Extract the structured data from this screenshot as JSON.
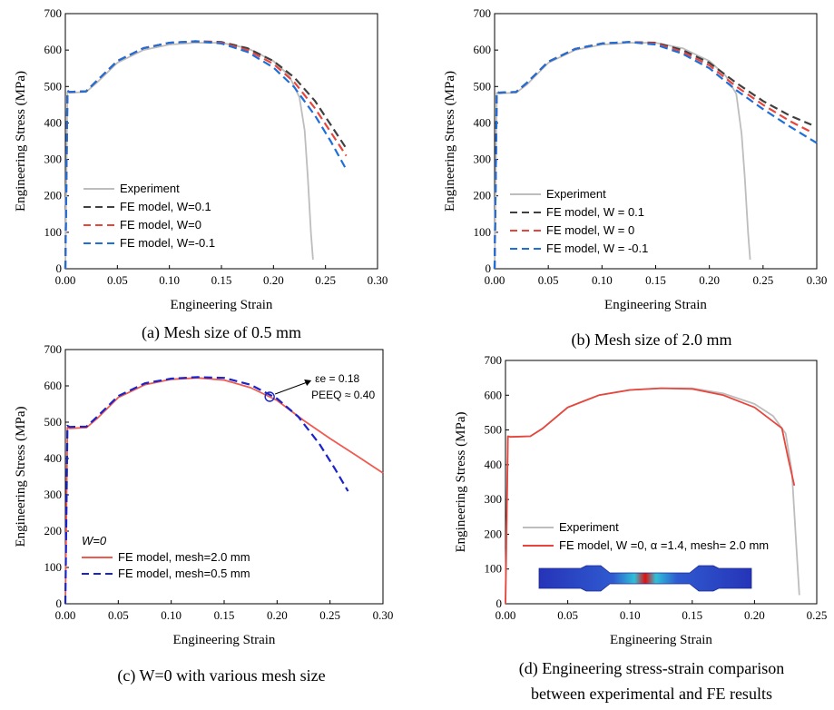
{
  "chart_data": [
    {
      "type": "line",
      "caption": "(a) Mesh size of 0.5 mm",
      "xlabel": "Engineering Strain",
      "ylabel": "Engineering Stress (MPa)",
      "xlim": [
        0,
        0.3
      ],
      "ylim": [
        0,
        700
      ],
      "xticks": [
        "0.00",
        "0.05",
        "0.10",
        "0.15",
        "0.20",
        "0.25",
        "0.30"
      ],
      "yticks": [
        "0",
        "100",
        "200",
        "300",
        "400",
        "500",
        "600",
        "700"
      ],
      "legend": [
        {
          "label": "Experiment",
          "color": "#bdbdbd",
          "dash": "solid"
        },
        {
          "label": "FE model, W=0.1",
          "color": "#404040",
          "dash": "dashed"
        },
        {
          "label": "FE model, W=0",
          "color": "#e8453c",
          "dash": "dashed"
        },
        {
          "label": "FE model, W=-0.1",
          "color": "#1f6fd8",
          "dash": "dashed"
        }
      ],
      "series": [
        {
          "name": "Experiment",
          "x": [
            0,
            0.002,
            0.004,
            0.02,
            0.03,
            0.05,
            0.075,
            0.1,
            0.125,
            0.15,
            0.175,
            0.2,
            0.215,
            0.225,
            0.23,
            0.233,
            0.236,
            0.238
          ],
          "y": [
            0,
            485,
            483,
            485,
            510,
            565,
            600,
            615,
            620,
            620,
            605,
            570,
            530,
            470,
            380,
            250,
            100,
            25
          ]
        },
        {
          "name": "FE model, W=0.1",
          "x": [
            0,
            0.002,
            0.004,
            0.02,
            0.03,
            0.05,
            0.075,
            0.1,
            0.125,
            0.15,
            0.175,
            0.2,
            0.22,
            0.24,
            0.255,
            0.27
          ],
          "y": [
            0,
            488,
            485,
            487,
            515,
            570,
            605,
            620,
            624,
            622,
            605,
            570,
            525,
            460,
            395,
            330
          ]
        },
        {
          "name": "FE model, W=0",
          "x": [
            0,
            0.002,
            0.004,
            0.02,
            0.03,
            0.05,
            0.075,
            0.1,
            0.125,
            0.15,
            0.175,
            0.2,
            0.22,
            0.24,
            0.255,
            0.27
          ],
          "y": [
            0,
            488,
            485,
            487,
            515,
            570,
            605,
            620,
            624,
            620,
            600,
            562,
            512,
            440,
            375,
            310
          ]
        },
        {
          "name": "FE model, W=-0.1",
          "x": [
            0,
            0.002,
            0.004,
            0.02,
            0.03,
            0.05,
            0.075,
            0.1,
            0.125,
            0.15,
            0.175,
            0.2,
            0.22,
            0.24,
            0.255,
            0.27
          ],
          "y": [
            0,
            488,
            485,
            487,
            515,
            570,
            605,
            620,
            624,
            618,
            595,
            552,
            498,
            420,
            350,
            272
          ]
        }
      ]
    },
    {
      "type": "line",
      "caption": "(b) Mesh size of 2.0 mm",
      "xlabel": "Engineering Strain",
      "ylabel": "Engineering Stress (MPa)",
      "xlim": [
        0,
        0.3
      ],
      "ylim": [
        0,
        700
      ],
      "xticks": [
        "0.00",
        "0.05",
        "0.10",
        "0.15",
        "0.20",
        "0.25",
        "0.30"
      ],
      "yticks": [
        "0",
        "100",
        "200",
        "300",
        "400",
        "500",
        "600",
        "700"
      ],
      "legend": [
        {
          "label": "Experiment",
          "color": "#bdbdbd",
          "dash": "solid"
        },
        {
          "label": "FE model, W = 0.1",
          "color": "#404040",
          "dash": "dashed"
        },
        {
          "label": "FE model, W = 0",
          "color": "#e8453c",
          "dash": "dashed"
        },
        {
          "label": "FE model, W = -0.1",
          "color": "#1f6fd8",
          "dash": "dashed"
        }
      ],
      "series": [
        {
          "name": "Experiment",
          "x": [
            0,
            0.002,
            0.004,
            0.02,
            0.03,
            0.05,
            0.075,
            0.1,
            0.125,
            0.15,
            0.175,
            0.2,
            0.215,
            0.225,
            0.23,
            0.233,
            0.236,
            0.238
          ],
          "y": [
            0,
            483,
            481,
            483,
            505,
            565,
            600,
            615,
            620,
            620,
            605,
            570,
            530,
            480,
            370,
            250,
            100,
            25
          ]
        },
        {
          "name": "FE model, W = 0.1",
          "x": [
            0,
            0.002,
            0.004,
            0.02,
            0.03,
            0.05,
            0.075,
            0.1,
            0.125,
            0.15,
            0.175,
            0.2,
            0.225,
            0.25,
            0.275,
            0.295
          ],
          "y": [
            0,
            485,
            483,
            485,
            510,
            568,
            603,
            618,
            622,
            620,
            600,
            565,
            510,
            460,
            420,
            395
          ]
        },
        {
          "name": "FE model, W = 0",
          "x": [
            0,
            0.002,
            0.004,
            0.02,
            0.03,
            0.05,
            0.075,
            0.1,
            0.125,
            0.15,
            0.175,
            0.2,
            0.225,
            0.25,
            0.275,
            0.295
          ],
          "y": [
            0,
            485,
            483,
            485,
            510,
            568,
            603,
            618,
            622,
            618,
            595,
            558,
            500,
            450,
            405,
            375
          ]
        },
        {
          "name": "FE model, W = -0.1",
          "x": [
            0,
            0.002,
            0.004,
            0.02,
            0.03,
            0.05,
            0.075,
            0.1,
            0.125,
            0.15,
            0.175,
            0.2,
            0.225,
            0.25,
            0.275,
            0.3
          ],
          "y": [
            0,
            485,
            483,
            485,
            510,
            568,
            603,
            618,
            622,
            615,
            590,
            550,
            490,
            438,
            390,
            345
          ]
        }
      ]
    },
    {
      "type": "line",
      "caption": "(c) W=0 with various mesh size",
      "xlabel": "Engineering Strain",
      "ylabel": "Engineering Stress (MPa)",
      "xlim": [
        0,
        0.3
      ],
      "ylim": [
        0,
        700
      ],
      "xticks": [
        "0.00",
        "0.05",
        "0.10",
        "0.15",
        "0.20",
        "0.25",
        "0.30"
      ],
      "yticks": [
        "0",
        "100",
        "200",
        "300",
        "400",
        "500",
        "600",
        "700"
      ],
      "legend_title": "W=0",
      "legend": [
        {
          "label": "FE model, mesh=2.0 mm",
          "color": "#f05a50",
          "dash": "solid"
        },
        {
          "label": "FE model, mesh=0.5 mm",
          "color": "#1a24c8",
          "dash": "dashed"
        }
      ],
      "annotation": {
        "line1": "εe = 0.18",
        "line2": "PEEQ ≈ 0.40",
        "x": 0.193,
        "y": 570
      },
      "series": [
        {
          "name": "FE model, mesh=2.0 mm",
          "x": [
            0,
            0.002,
            0.004,
            0.02,
            0.03,
            0.05,
            0.075,
            0.1,
            0.125,
            0.15,
            0.175,
            0.2,
            0.225,
            0.25,
            0.275,
            0.3
          ],
          "y": [
            0,
            485,
            483,
            485,
            510,
            568,
            603,
            618,
            622,
            616,
            595,
            560,
            505,
            455,
            408,
            360
          ]
        },
        {
          "name": "FE model, mesh=0.5 mm",
          "x": [
            0,
            0.002,
            0.004,
            0.02,
            0.03,
            0.05,
            0.075,
            0.1,
            0.125,
            0.15,
            0.175,
            0.2,
            0.22,
            0.24,
            0.255,
            0.267
          ],
          "y": [
            0,
            490,
            487,
            488,
            515,
            572,
            607,
            620,
            624,
            622,
            603,
            565,
            515,
            440,
            370,
            310
          ]
        }
      ]
    },
    {
      "type": "line",
      "caption_line1": "(d) Engineering stress-strain comparison",
      "caption_line2": "between experimental and FE results",
      "xlabel": "Engineering Strain",
      "ylabel": "Engineering Stress (MPa)",
      "xlim": [
        0,
        0.25
      ],
      "ylim": [
        0,
        700
      ],
      "xticks": [
        "0.00",
        "0.05",
        "0.10",
        "0.15",
        "0.20",
        "0.25"
      ],
      "yticks": [
        "0",
        "100",
        "200",
        "300",
        "400",
        "500",
        "600",
        "700"
      ],
      "legend": [
        {
          "label": "Experiment",
          "color": "#bdbdbd",
          "dash": "solid"
        },
        {
          "label": "FE model, W =0, α =1.4, mesh= 2.0 mm",
          "color": "#e8453c",
          "dash": "solid"
        }
      ],
      "series": [
        {
          "name": "Experiment",
          "x": [
            0,
            0.002,
            0.004,
            0.02,
            0.03,
            0.05,
            0.075,
            0.1,
            0.125,
            0.15,
            0.175,
            0.2,
            0.215,
            0.225,
            0.23,
            0.233,
            0.236
          ],
          "y": [
            0,
            482,
            480,
            482,
            505,
            565,
            600,
            615,
            620,
            620,
            605,
            575,
            540,
            490,
            380,
            200,
            25
          ]
        },
        {
          "name": "FE model",
          "x": [
            0,
            0.002,
            0.004,
            0.02,
            0.03,
            0.05,
            0.075,
            0.1,
            0.125,
            0.15,
            0.175,
            0.2,
            0.222,
            0.227,
            0.232
          ],
          "y": [
            0,
            482,
            480,
            482,
            505,
            565,
            600,
            615,
            620,
            618,
            600,
            565,
            505,
            420,
            340
          ]
        }
      ]
    }
  ]
}
